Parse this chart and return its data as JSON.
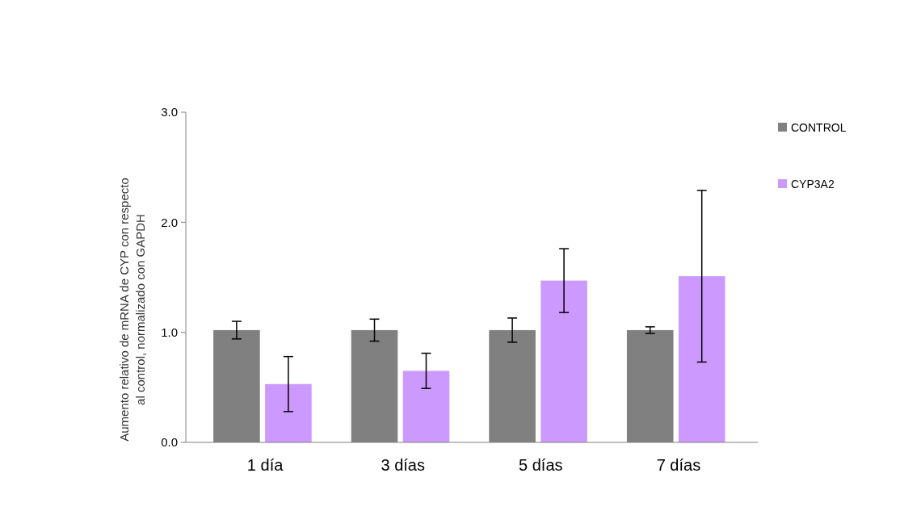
{
  "chart_data": {
    "type": "bar",
    "ylabel": "Aumento relativo de mRNA de CYP  con respecto al control, normalizado con GAPDH",
    "categories": [
      "1 día",
      "3 días",
      "5 días",
      "7 días"
    ],
    "series": [
      {
        "name": "CONTROL",
        "color": "#808080",
        "values": [
          1.02,
          1.02,
          1.02,
          1.02
        ],
        "errors": [
          0.08,
          0.1,
          0.11,
          0.03
        ]
      },
      {
        "name": "CYP3A2",
        "color": "#cc99ff",
        "values": [
          0.53,
          0.65,
          1.47,
          1.51
        ],
        "errors": [
          0.25,
          0.16,
          0.29,
          0.78
        ]
      }
    ],
    "ylim": [
      0,
      3
    ],
    "yticks": [
      {
        "value": 0,
        "label": "0.0"
      },
      {
        "value": 1,
        "label": "1.0"
      },
      {
        "value": 2,
        "label": "2.0"
      },
      {
        "value": 3,
        "label": "3.0"
      }
    ],
    "legend": "top right"
  }
}
